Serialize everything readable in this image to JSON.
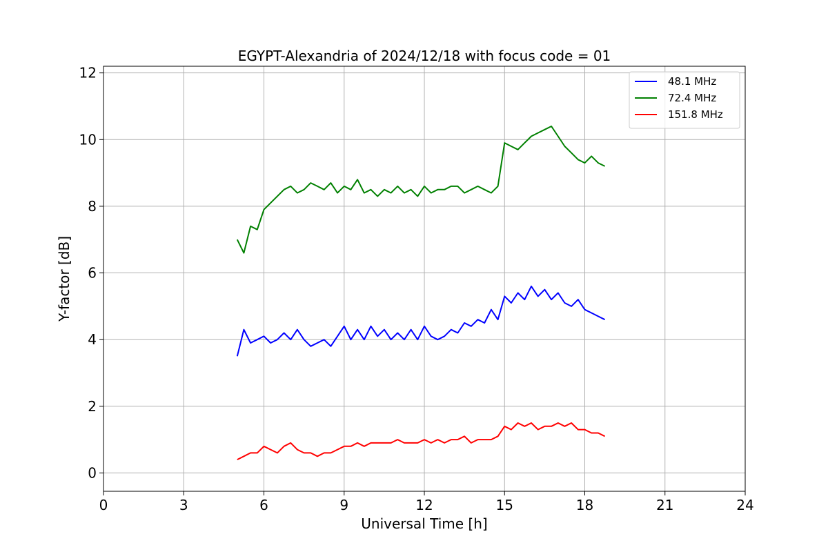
{
  "chart_data": {
    "type": "line",
    "title": "EGYPT-Alexandria of 2024/12/18 with focus code = 01",
    "xlabel": "Universal Time [h]",
    "ylabel": "Y-factor [dB]",
    "xlim": [
      0,
      24
    ],
    "ylim": [
      -0.55,
      12.2
    ],
    "xticks": [
      0,
      3,
      6,
      9,
      12,
      15,
      18,
      21,
      24
    ],
    "xtick_labels": [
      "0",
      "3",
      "6",
      "9",
      "12",
      "15",
      "18",
      "21",
      "24"
    ],
    "yticks": [
      0,
      2,
      4,
      6,
      8,
      10,
      12
    ],
    "ytick_labels": [
      "0",
      "2",
      "4",
      "6",
      "8",
      "10",
      "12"
    ],
    "grid": true,
    "legend_position": "top-right",
    "series": [
      {
        "name": "48.1 MHz",
        "color": "#0000ff",
        "x": [
          5.0,
          5.25,
          5.5,
          5.75,
          6.0,
          6.25,
          6.5,
          6.75,
          7.0,
          7.25,
          7.5,
          7.75,
          8.0,
          8.25,
          8.5,
          8.75,
          9.0,
          9.25,
          9.5,
          9.75,
          10.0,
          10.25,
          10.5,
          10.75,
          11.0,
          11.25,
          11.5,
          11.75,
          12.0,
          12.25,
          12.5,
          12.75,
          13.0,
          13.25,
          13.5,
          13.75,
          14.0,
          14.25,
          14.5,
          14.75,
          15.0,
          15.25,
          15.5,
          15.75,
          16.0,
          16.25,
          16.5,
          16.75,
          17.0,
          17.25,
          17.5,
          17.75,
          18.0,
          18.25,
          18.5,
          18.75
        ],
        "values": [
          3.5,
          4.3,
          3.9,
          4.0,
          4.1,
          3.9,
          4.0,
          4.2,
          4.0,
          4.3,
          4.0,
          3.8,
          3.9,
          4.0,
          3.8,
          4.1,
          4.4,
          4.0,
          4.3,
          4.0,
          4.4,
          4.1,
          4.3,
          4.0,
          4.2,
          4.0,
          4.3,
          4.0,
          4.4,
          4.1,
          4.0,
          4.1,
          4.3,
          4.2,
          4.5,
          4.4,
          4.6,
          4.5,
          4.9,
          4.6,
          5.3,
          5.1,
          5.4,
          5.2,
          5.6,
          5.3,
          5.5,
          5.2,
          5.4,
          5.1,
          5.0,
          5.2,
          4.9,
          4.8,
          4.7,
          4.6
        ]
      },
      {
        "name": "72.4 MHz",
        "color": "#008000",
        "x": [
          5.0,
          5.25,
          5.5,
          5.75,
          6.0,
          6.25,
          6.5,
          6.75,
          7.0,
          7.25,
          7.5,
          7.75,
          8.0,
          8.25,
          8.5,
          8.75,
          9.0,
          9.25,
          9.5,
          9.75,
          10.0,
          10.25,
          10.5,
          10.75,
          11.0,
          11.25,
          11.5,
          11.75,
          12.0,
          12.25,
          12.5,
          12.75,
          13.0,
          13.25,
          13.5,
          13.75,
          14.0,
          14.25,
          14.5,
          14.75,
          15.0,
          15.25,
          15.5,
          15.75,
          16.0,
          16.25,
          16.5,
          16.75,
          17.0,
          17.25,
          17.5,
          17.75,
          18.0,
          18.25,
          18.5,
          18.75
        ],
        "values": [
          7.0,
          6.6,
          7.4,
          7.3,
          7.9,
          8.1,
          8.3,
          8.5,
          8.6,
          8.4,
          8.5,
          8.7,
          8.6,
          8.5,
          8.7,
          8.4,
          8.6,
          8.5,
          8.8,
          8.4,
          8.5,
          8.3,
          8.5,
          8.4,
          8.6,
          8.4,
          8.5,
          8.3,
          8.6,
          8.4,
          8.5,
          8.5,
          8.6,
          8.6,
          8.4,
          8.5,
          8.6,
          8.5,
          8.4,
          8.6,
          9.9,
          9.8,
          9.7,
          9.9,
          10.1,
          10.2,
          10.3,
          10.4,
          10.1,
          9.8,
          9.6,
          9.4,
          9.3,
          9.5,
          9.3,
          9.2
        ]
      },
      {
        "name": "151.8 MHz",
        "color": "#ff0000",
        "x": [
          5.0,
          5.25,
          5.5,
          5.75,
          6.0,
          6.25,
          6.5,
          6.75,
          7.0,
          7.25,
          7.5,
          7.75,
          8.0,
          8.25,
          8.5,
          8.75,
          9.0,
          9.25,
          9.5,
          9.75,
          10.0,
          10.25,
          10.5,
          10.75,
          11.0,
          11.25,
          11.5,
          11.75,
          12.0,
          12.25,
          12.5,
          12.75,
          13.0,
          13.25,
          13.5,
          13.75,
          14.0,
          14.25,
          14.5,
          14.75,
          15.0,
          15.25,
          15.5,
          15.75,
          16.0,
          16.25,
          16.5,
          16.75,
          17.0,
          17.25,
          17.5,
          17.75,
          18.0,
          18.25,
          18.5,
          18.75
        ],
        "values": [
          0.4,
          0.5,
          0.6,
          0.6,
          0.8,
          0.7,
          0.6,
          0.8,
          0.9,
          0.7,
          0.6,
          0.6,
          0.5,
          0.6,
          0.6,
          0.7,
          0.8,
          0.8,
          0.9,
          0.8,
          0.9,
          0.9,
          0.9,
          0.9,
          1.0,
          0.9,
          0.9,
          0.9,
          1.0,
          0.9,
          1.0,
          0.9,
          1.0,
          1.0,
          1.1,
          0.9,
          1.0,
          1.0,
          1.0,
          1.1,
          1.4,
          1.3,
          1.5,
          1.4,
          1.5,
          1.3,
          1.4,
          1.4,
          1.5,
          1.4,
          1.5,
          1.3,
          1.3,
          1.2,
          1.2,
          1.1
        ]
      }
    ]
  }
}
